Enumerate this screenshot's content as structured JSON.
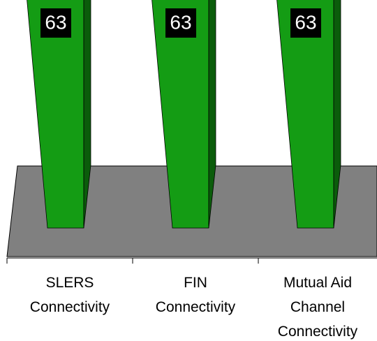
{
  "chart_data": {
    "type": "bar3d",
    "categories": [
      "SLERS\nConnectivity",
      "FIN\nConnectivity",
      "Mutual Aid\nChannel\nConnectivity"
    ],
    "values": [
      63,
      63,
      63
    ],
    "color": "#149c14"
  }
}
